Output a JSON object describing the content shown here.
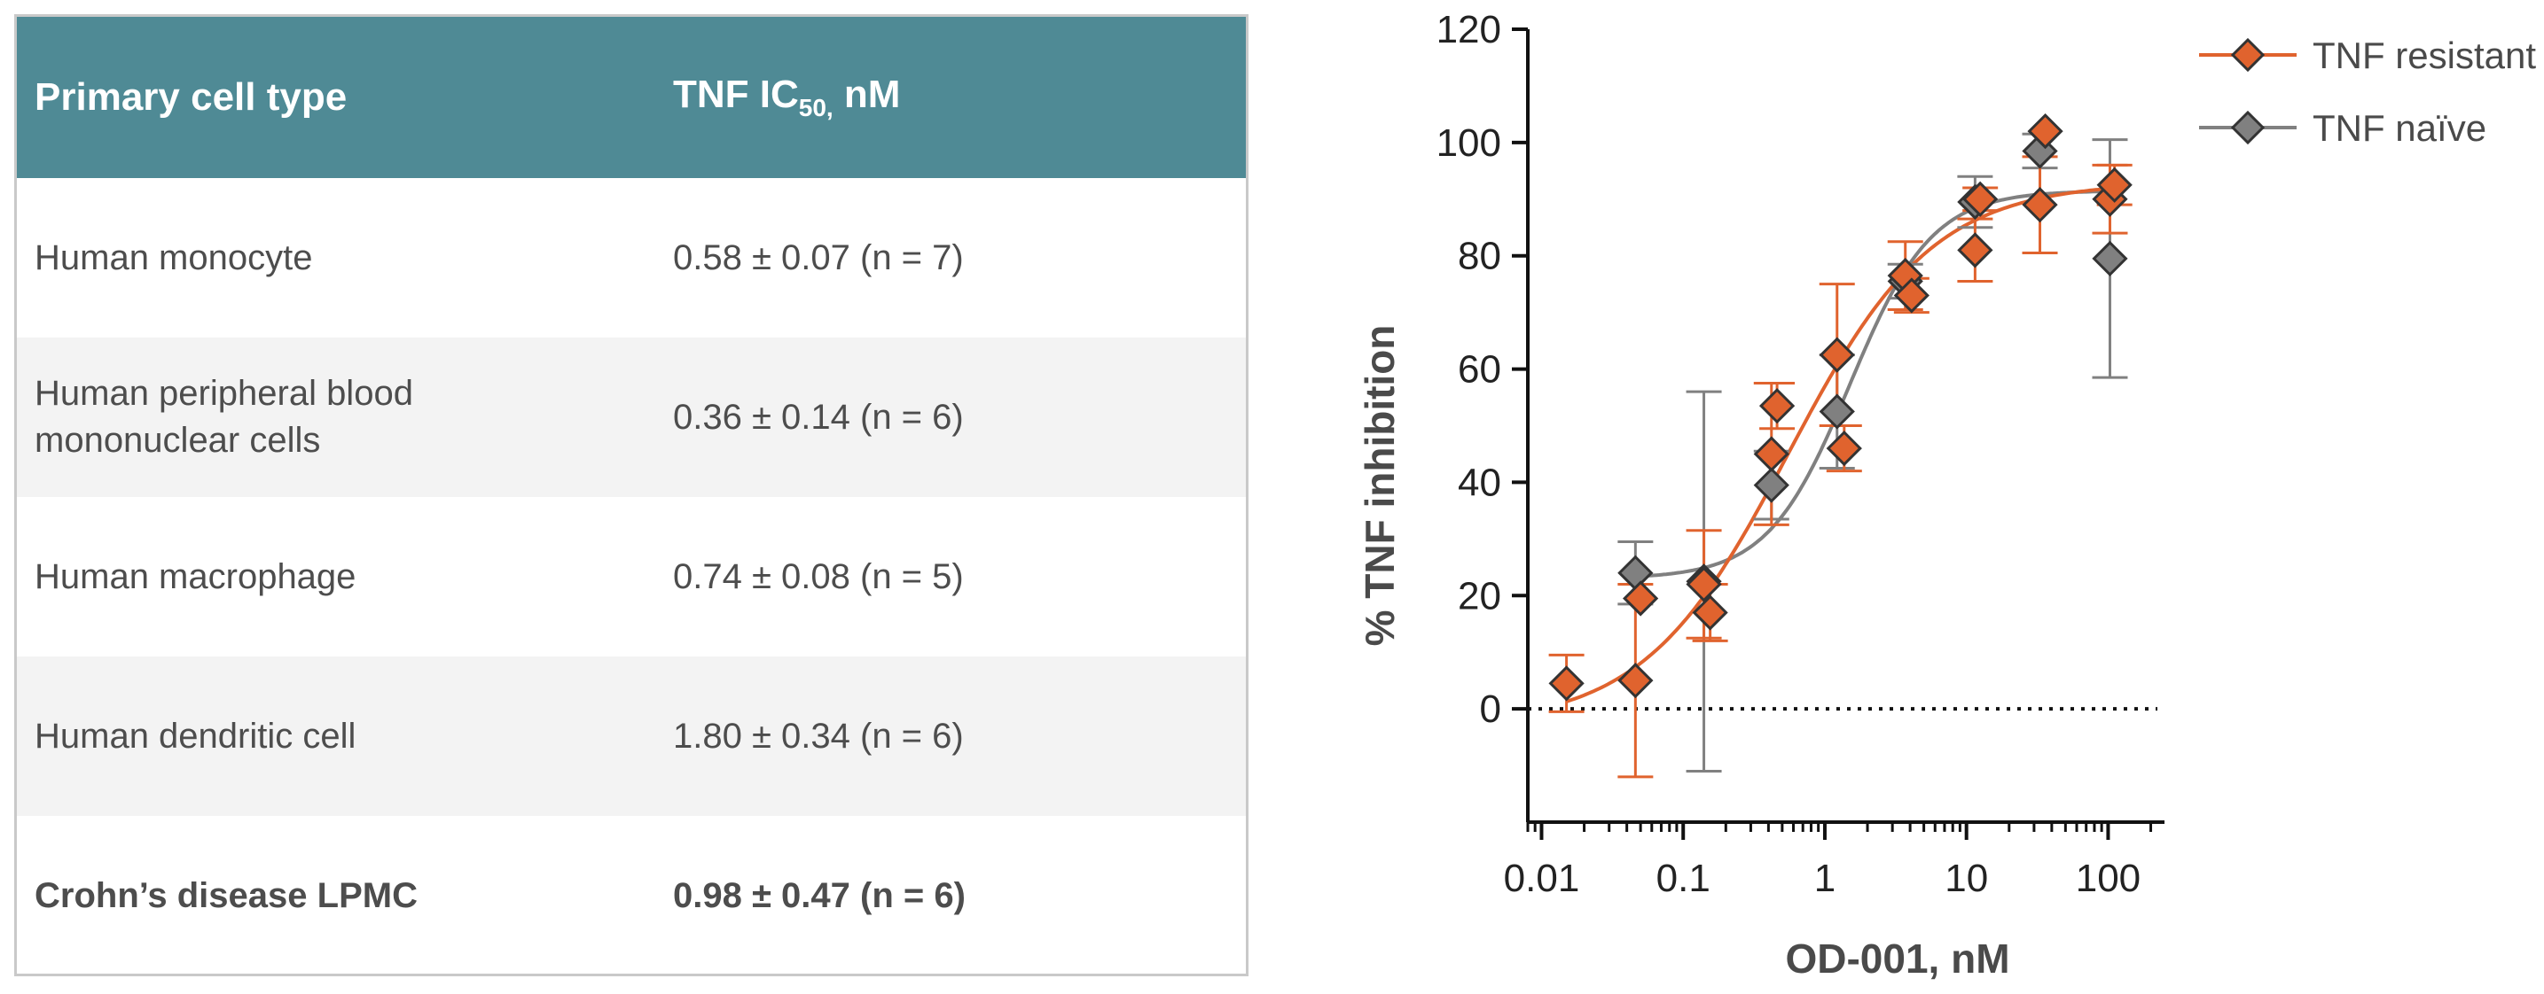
{
  "table": {
    "header": {
      "col1": "Primary cell type",
      "col2_pre": "TNF IC",
      "col2_sub": "50,",
      "col2_post": " nM"
    },
    "rows": [
      {
        "cell": "Human monocyte",
        "value": "0.58 ± 0.07 (n = 7)",
        "bold": false
      },
      {
        "cell": "Human peripheral blood mononuclear cells",
        "value": "0.36 ± 0.14 (n = 6)",
        "bold": false
      },
      {
        "cell": "Human macrophage",
        "value": "0.74 ± 0.08 (n = 5)",
        "bold": false
      },
      {
        "cell": "Human dendritic cell",
        "value": "1.80 ± 0.34 (n = 6)",
        "bold": false
      },
      {
        "cell": "Crohn’s disease LPMC",
        "value": "0.98 ± 0.47 (n = 6)",
        "bold": true
      }
    ]
  },
  "chart_data": {
    "type": "scatter",
    "xlabel": "OD-001, nM",
    "ylabel": "% TNF inhibition",
    "xscale": "log",
    "xlim": [
      0.008,
      250
    ],
    "ylim": [
      -20,
      120
    ],
    "xticks": [
      0.01,
      0.1,
      1,
      10,
      100
    ],
    "xtick_labels": [
      "0.01",
      "0.1",
      "1",
      "10",
      "100"
    ],
    "yticks": [
      0,
      20,
      40,
      60,
      80,
      100,
      120
    ],
    "ytick_labels": [
      "0",
      "20",
      "40",
      "60",
      "80",
      "100",
      "120"
    ],
    "reference_line": {
      "y": 0,
      "style": "dotted"
    },
    "legend_position": "top-right",
    "grid": false,
    "series": [
      {
        "name": "TNF resistant",
        "color": "#e0632e",
        "marker": "diamond",
        "points": [
          {
            "x": 0.015,
            "y": 4.5,
            "err": 5
          },
          {
            "x": 0.046,
            "y": 5,
            "err": 17
          },
          {
            "x": 0.05,
            "y": 19.5,
            "err": 0
          },
          {
            "x": 0.14,
            "y": 22,
            "err": 9.5
          },
          {
            "x": 0.155,
            "y": 17,
            "err": 5
          },
          {
            "x": 0.42,
            "y": 45,
            "err": 12.5
          },
          {
            "x": 0.46,
            "y": 53.5,
            "err": 4
          },
          {
            "x": 1.22,
            "y": 62.5,
            "err": 12.5
          },
          {
            "x": 1.37,
            "y": 46,
            "err": 4
          },
          {
            "x": 3.7,
            "y": 76.5,
            "err": 6
          },
          {
            "x": 4.1,
            "y": 73,
            "err": 3
          },
          {
            "x": 11.5,
            "y": 81,
            "err": 5.5
          },
          {
            "x": 12.5,
            "y": 90,
            "err": 2
          },
          {
            "x": 33,
            "y": 89,
            "err": 8.5
          },
          {
            "x": 36,
            "y": 102,
            "err": 0
          },
          {
            "x": 103,
            "y": 90,
            "err": 6
          },
          {
            "x": 111,
            "y": 92.5,
            "err": 3.5
          }
        ],
        "fit": {
          "bottom": -3,
          "top": 93,
          "ec50": 0.55,
          "hill": 0.85
        }
      },
      {
        "name": "TNF naïve",
        "color": "#808080",
        "marker": "diamond",
        "points": [
          {
            "x": 0.046,
            "y": 24,
            "err": 5.5
          },
          {
            "x": 0.14,
            "y": 22.5,
            "err": 33.5
          },
          {
            "x": 0.42,
            "y": 39.5,
            "err": 6
          },
          {
            "x": 1.22,
            "y": 52.5,
            "err": 10
          },
          {
            "x": 3.7,
            "y": 75.5,
            "err": 3
          },
          {
            "x": 11.5,
            "y": 89.5,
            "err": 4.5
          },
          {
            "x": 33,
            "y": 98.5,
            "err": 3
          },
          {
            "x": 103,
            "y": 79.5,
            "err": 21
          }
        ],
        "fit": {
          "bottom": 23,
          "top": 91.5,
          "ec50": 1.5,
          "hill": 1.5
        }
      }
    ]
  }
}
